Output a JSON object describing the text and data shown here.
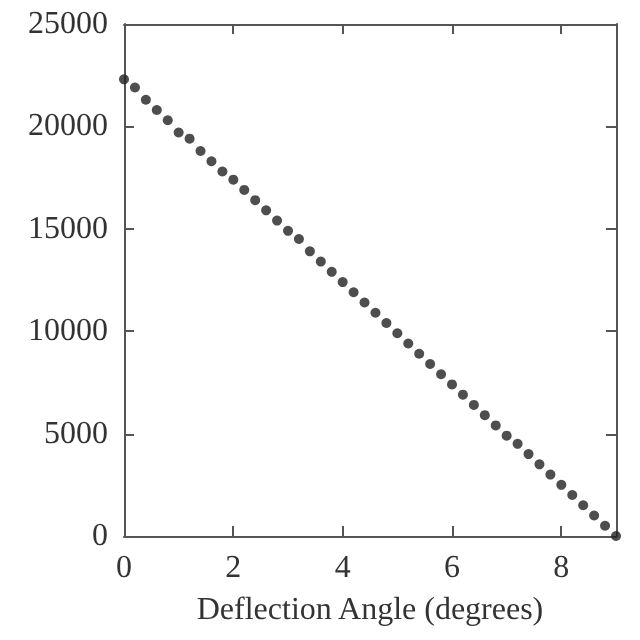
{
  "chart_data": {
    "type": "scatter",
    "xlabel": "Deflection Angle (degrees)",
    "x": [
      0,
      0.2,
      0.4,
      0.6,
      0.8,
      1.0,
      1.2,
      1.4,
      1.6,
      1.8,
      2.0,
      2.2,
      2.4,
      2.6,
      2.8,
      3.0,
      3.2,
      3.4,
      3.6,
      3.8,
      4.0,
      4.2,
      4.4,
      4.6,
      4.8,
      5.0,
      5.2,
      5.4,
      5.6,
      5.8,
      6.0,
      6.2,
      6.4,
      6.6,
      6.8,
      7.0,
      7.2,
      7.4,
      7.6,
      7.8,
      8.0,
      8.2,
      8.4,
      8.6,
      8.8,
      9.0
    ],
    "series": [
      {
        "color": "#222222",
        "values": [
          22300,
          21900,
          21300,
          20800,
          20300,
          19700,
          19400,
          18800,
          18300,
          17800,
          17400,
          16900,
          16400,
          15900,
          15400,
          14900,
          14500,
          13900,
          13400,
          12900,
          12400,
          11900,
          11400,
          10900,
          10400,
          9900,
          9400,
          8900,
          8400,
          7900,
          7400,
          6900,
          6400,
          5900,
          5400,
          4900,
          4500,
          4000,
          3500,
          3000,
          2500,
          2000,
          1500,
          1000,
          500,
          0
        ]
      }
    ],
    "xlim": [
      0,
      9
    ],
    "xticks": [
      0,
      2,
      4,
      6,
      8
    ],
    "ylim": [
      0,
      25000
    ],
    "yticks": [
      0,
      5000,
      10000,
      15000,
      20000,
      25000
    ],
    "marker": "circle",
    "grid": false
  }
}
